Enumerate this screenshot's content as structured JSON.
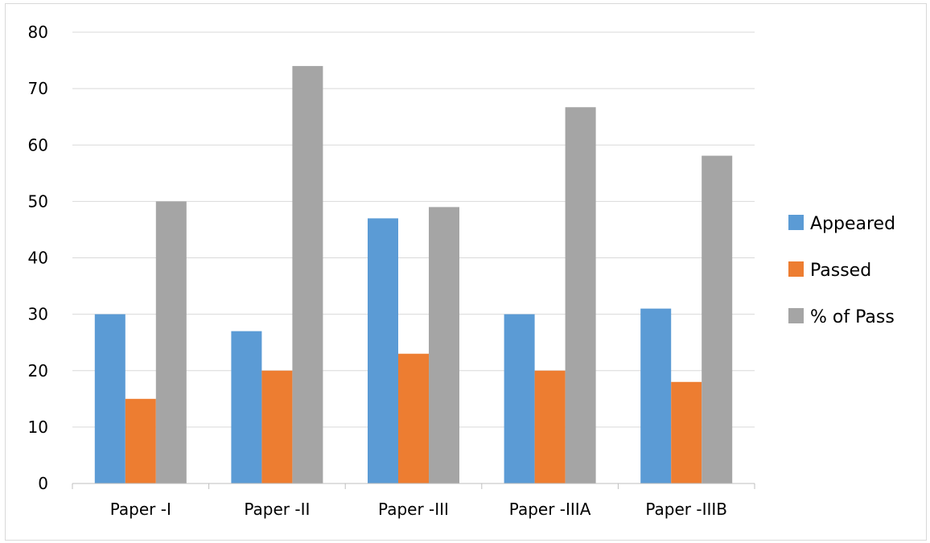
{
  "chart_data": {
    "type": "bar",
    "title": "",
    "xlabel": "",
    "ylabel": "",
    "ylim": [
      0,
      80
    ],
    "yticks": [
      0,
      10,
      20,
      30,
      40,
      50,
      60,
      70,
      80
    ],
    "grid": true,
    "legend_position": "right",
    "categories": [
      "Paper -I",
      "Paper -II",
      "Paper -III",
      "Paper -IIIA",
      "Paper -IIIB"
    ],
    "series": [
      {
        "name": "Appeared",
        "color": "#5b9bd5",
        "values": [
          30,
          27,
          47,
          30,
          31
        ]
      },
      {
        "name": "Passed",
        "color": "#ed7d31",
        "values": [
          15,
          20,
          23,
          20,
          18
        ]
      },
      {
        "name": "% of Pass",
        "color": "#a5a5a5",
        "values": [
          50,
          74,
          49,
          66.7,
          58.1
        ]
      }
    ]
  }
}
